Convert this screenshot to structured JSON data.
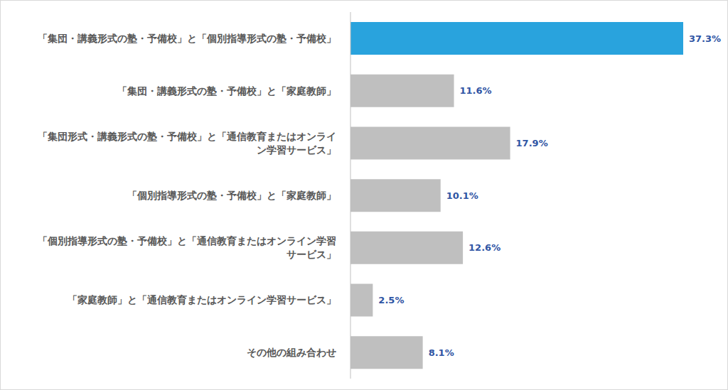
{
  "chart_data": {
    "type": "bar",
    "orientation": "horizontal",
    "categories": [
      "「集団・講義形式の塾・予備校」と「個別指導形式の塾・予備校」",
      "「集団・講義形式の塾・予備校」と「家庭教師」",
      "「集団形式・講義形式の塾・予備校」と「通信教育またはオンライン学習サービス」",
      "「個別指導形式の塾・予備校」と「家庭教師」",
      "「個別指導形式の塾・予備校」と「通信教育またはオンライン学習サービス」",
      "「家庭教師」と「通信教育またはオンライン学習サービス」",
      "その他の組み合わせ"
    ],
    "values": [
      37.3,
      11.6,
      17.9,
      10.1,
      12.6,
      2.5,
      8.1
    ],
    "value_labels": [
      "37.3%",
      "11.6%",
      "17.9%",
      "10.1%",
      "12.6%",
      "2.5%",
      "8.1%"
    ],
    "colors": [
      "#29a3dd",
      "#bfbfbf",
      "#bfbfbf",
      "#bfbfbf",
      "#bfbfbf",
      "#bfbfbf",
      "#bfbfbf"
    ],
    "data_labels": true,
    "tick_labels": "y",
    "grid": false
  }
}
